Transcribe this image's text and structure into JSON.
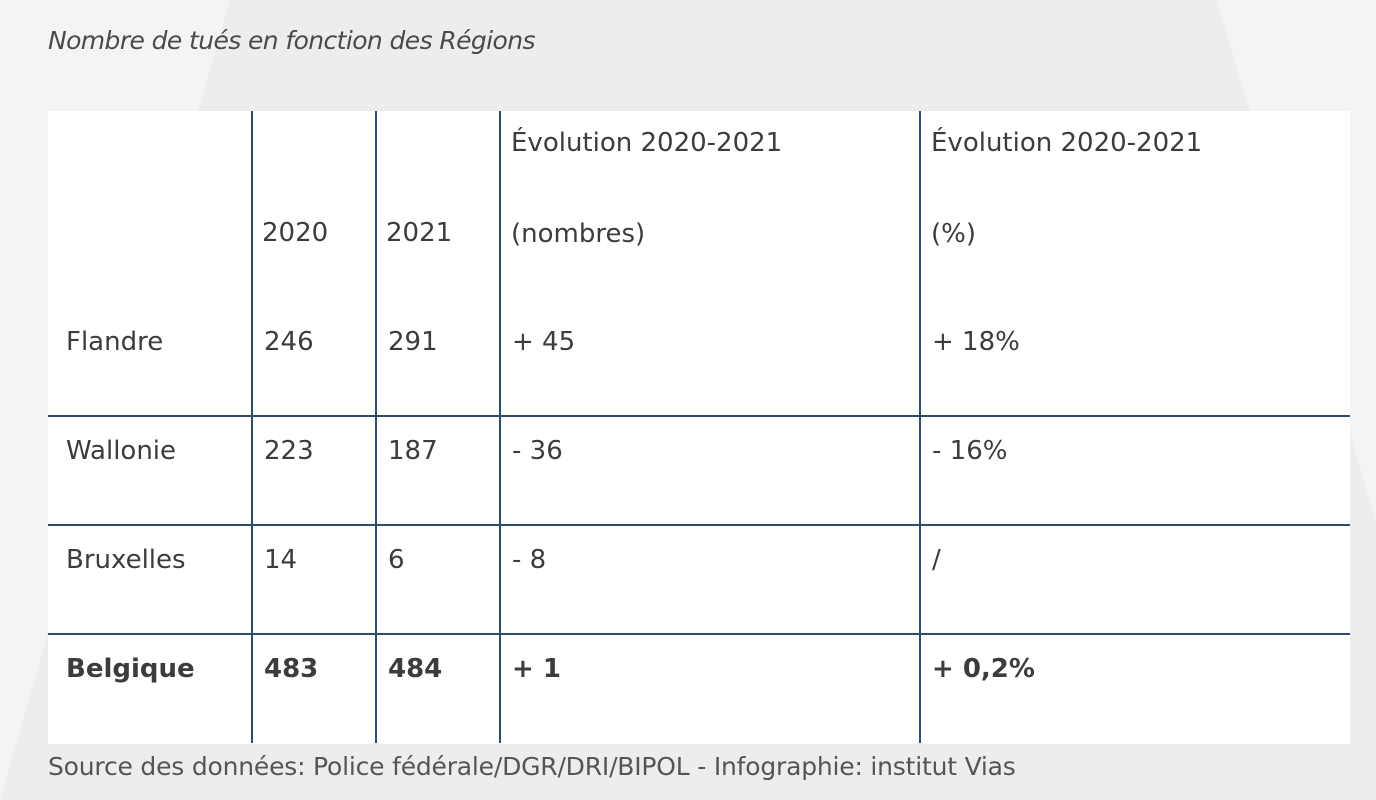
{
  "title": "Nombre de tués en fonction des Régions",
  "table": {
    "headers": {
      "region": "",
      "year_2020": "2020",
      "year_2021": "2021",
      "evo_numbers_line1": "Évolution 2020-2021",
      "evo_numbers_line2": "(nombres)",
      "evo_percent_line1": "Évolution 2020-2021",
      "evo_percent_line2": "(%)"
    },
    "rows": [
      {
        "region": "Flandre",
        "y2020": "246",
        "y2021": "291",
        "evo_numbers": "+ 45",
        "evo_percent": "+ 18%"
      },
      {
        "region": "Wallonie",
        "y2020": "223",
        "y2021": "187",
        "evo_numbers": "- 36",
        "evo_percent": "- 16%"
      },
      {
        "region": "Bruxelles",
        "y2020": "14",
        "y2021": "6",
        "evo_numbers": "- 8",
        "evo_percent": "/"
      },
      {
        "region": "Belgique",
        "y2020": "483",
        "y2021": "484",
        "evo_numbers": "+ 1",
        "evo_percent": "+ 0,2%"
      }
    ]
  },
  "source": "Source des données: Police fédérale/DGR/DRI/BIPOL - Infographie: institut Vias",
  "colors": {
    "background": "#ededee",
    "table_background": "#ffffff",
    "grid_lines": "#2f4b6e",
    "text": "#3c3c3c"
  }
}
